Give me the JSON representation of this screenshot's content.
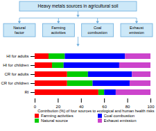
{
  "chart_data": {
    "type": "bar",
    "orientation": "horizontal",
    "stacked": true,
    "title": "Heavy metals sources in agricultural soil",
    "annotations": [
      "Natural\nfactor",
      "Farming\nactivities",
      "Coal\ncombustion",
      "Exhaust\nemission"
    ],
    "categories": [
      "RI",
      "CR for children",
      "CR for adults",
      "HI for children",
      "HI for adults"
    ],
    "series": [
      {
        "name": "Farming activities",
        "color": "#ff0000",
        "values": [
          55,
          28,
          28,
          15,
          12
        ]
      },
      {
        "name": "Natural source",
        "color": "#00cc00",
        "values": [
          5,
          22,
          18,
          10,
          14
        ]
      },
      {
        "name": "Coal combustion",
        "color": "#0000ff",
        "values": [
          10,
          32,
          38,
          48,
          52
        ]
      },
      {
        "name": "Exhaust emission",
        "color": "#cc44cc",
        "values": [
          30,
          18,
          16,
          27,
          22
        ]
      }
    ],
    "xlim": [
      0,
      100
    ],
    "xticks": [
      0,
      20,
      40,
      60,
      80,
      100
    ],
    "xlabel": "Contribution (%) of four sources to ecological and human health risks",
    "legend": "bottom"
  }
}
